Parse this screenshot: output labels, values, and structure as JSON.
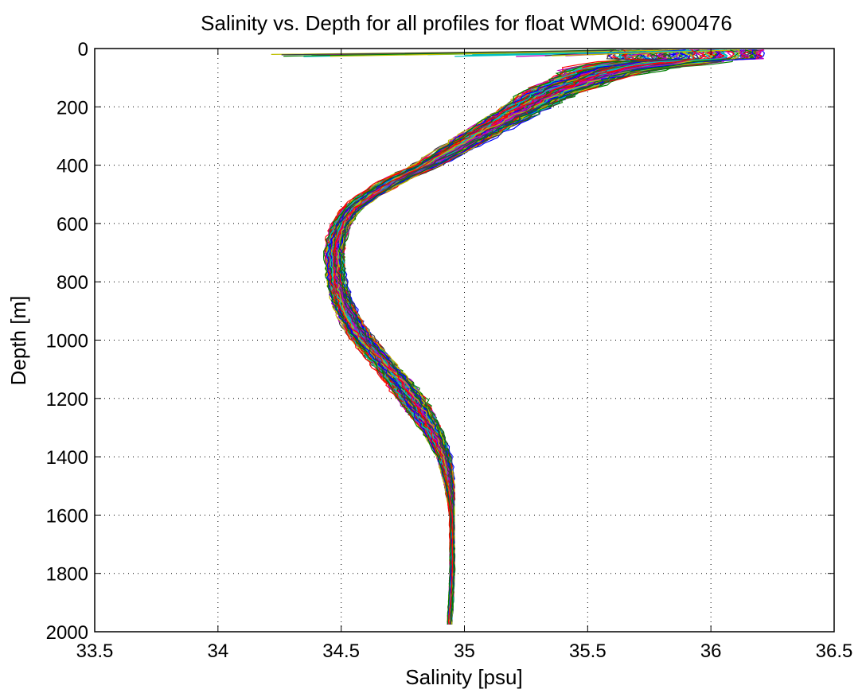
{
  "chart_data": {
    "type": "line",
    "title": "Salinity vs. Depth for all profiles for float WMOId: 6900476",
    "xlabel": "Salinity [psu]",
    "ylabel": "Depth [m]",
    "xlim": [
      33.5,
      36.5
    ],
    "ylim": [
      0,
      2000
    ],
    "y_reversed": true,
    "grid": "dotted",
    "legend": "none",
    "x_ticks": [
      "33.5",
      "34",
      "34.5",
      "35",
      "35.5",
      "36",
      "36.5"
    ],
    "y_ticks": [
      "0",
      "200",
      "400",
      "600",
      "800",
      "1000",
      "1200",
      "1400",
      "1600",
      "1800",
      "2000"
    ],
    "profile_count_approx": 150,
    "series_colors": [
      "#0000ff",
      "#008000",
      "#ff0000",
      "#00bfbf",
      "#bf00bf",
      "#bfbf00",
      "#404040"
    ],
    "mean_profile": {
      "depth": [
        5,
        15,
        25,
        35,
        50,
        70,
        100,
        150,
        200,
        250,
        300,
        350,
        400,
        450,
        500,
        550,
        600,
        650,
        700,
        750,
        800,
        850,
        900,
        950,
        1000,
        1050,
        1100,
        1150,
        1200,
        1250,
        1300,
        1350,
        1400,
        1450,
        1500,
        1550,
        1600,
        1700,
        1800,
        1900,
        1960,
        1980
      ],
      "salinity": [
        36.0,
        35.98,
        35.95,
        35.9,
        35.75,
        35.6,
        35.5,
        35.35,
        35.25,
        35.15,
        35.05,
        34.95,
        34.85,
        34.72,
        34.62,
        34.54,
        34.5,
        34.48,
        34.47,
        34.475,
        34.48,
        34.495,
        34.52,
        34.55,
        34.59,
        34.64,
        34.69,
        34.74,
        34.78,
        34.82,
        34.86,
        34.89,
        34.915,
        34.93,
        34.94,
        34.945,
        34.95,
        34.95,
        34.95,
        34.945,
        34.94,
        34.94
      ]
    },
    "spread": {
      "depth": [
        0,
        50,
        100,
        200,
        400,
        600,
        800,
        1000,
        1200,
        1400,
        1600,
        2000
      ],
      "salinity_spread": [
        0.25,
        0.25,
        0.15,
        0.1,
        0.06,
        0.04,
        0.04,
        0.05,
        0.06,
        0.03,
        0.01,
        0.01
      ]
    }
  }
}
